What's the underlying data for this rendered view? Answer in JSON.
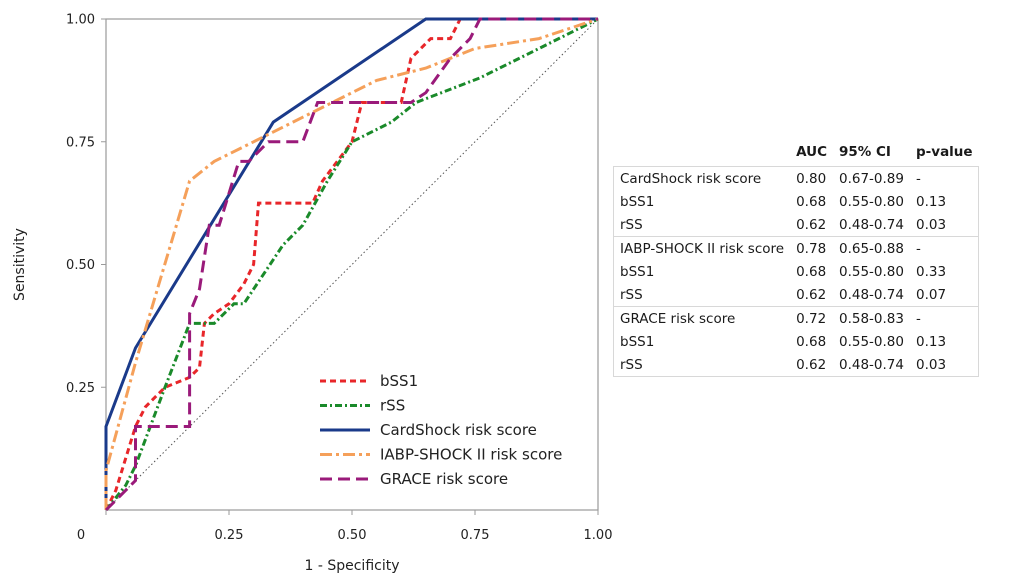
{
  "chart_data": {
    "type": "line",
    "xlabel": "1 - Specificity",
    "ylabel": "Sensitivity",
    "xlim": [
      0,
      1
    ],
    "ylim": [
      0,
      1
    ],
    "x_ticks": [
      "0",
      "0.25",
      "0.50",
      "0.75",
      "1.00"
    ],
    "y_ticks": [
      "0.25",
      "0.50",
      "0.75",
      "1.00"
    ],
    "legend_position": "bottom-right",
    "reference_line": {
      "from": [
        0,
        0
      ],
      "to": [
        1,
        1
      ],
      "style": "dotted",
      "color": "#555555"
    },
    "series": [
      {
        "name": "bSS1",
        "color": "#e8262a",
        "dash": "dash",
        "x": [
          0,
          0.02,
          0.06,
          0.08,
          0.12,
          0.17,
          0.19,
          0.2,
          0.22,
          0.25,
          0.28,
          0.3,
          0.31,
          0.42,
          0.44,
          0.5,
          0.52,
          0.6,
          0.62,
          0.66,
          0.7,
          0.72,
          0.74,
          0.8,
          1.0
        ],
        "y": [
          0,
          0.04,
          0.17,
          0.21,
          0.25,
          0.27,
          0.29,
          0.38,
          0.4,
          0.42,
          0.46,
          0.5,
          0.625,
          0.625,
          0.67,
          0.75,
          0.83,
          0.83,
          0.92,
          0.96,
          0.96,
          1.0,
          1.0,
          1.0,
          1.0
        ]
      },
      {
        "name": "rSS",
        "color": "#1a8a2a",
        "dash": "dashdot",
        "x": [
          0,
          0.04,
          0.06,
          0.09,
          0.12,
          0.17,
          0.22,
          0.26,
          0.28,
          0.36,
          0.4,
          0.45,
          0.5,
          0.58,
          0.63,
          0.76,
          0.88,
          1.0
        ],
        "y": [
          0,
          0.05,
          0.09,
          0.17,
          0.25,
          0.38,
          0.38,
          0.42,
          0.42,
          0.54,
          0.58,
          0.67,
          0.75,
          0.79,
          0.83,
          0.88,
          0.94,
          1.0
        ],
        "raw_steps": true
      },
      {
        "name": "CardShock risk score",
        "color": "#1a3a8a",
        "dash": "solid",
        "x": [
          0,
          0.0,
          0.06,
          0.34,
          0.65,
          1.0
        ],
        "y": [
          0,
          0.17,
          0.33,
          0.79,
          1.0,
          1.0
        ]
      },
      {
        "name": "IABP-SHOCK II risk score",
        "color": "#f5a05a",
        "dash": "longdashdot",
        "x": [
          0,
          0.0,
          0.06,
          0.17,
          0.22,
          0.3,
          0.4,
          0.55,
          0.65,
          0.75,
          0.88,
          1.0
        ],
        "y": [
          0,
          0.08,
          0.3,
          0.67,
          0.71,
          0.75,
          0.8,
          0.875,
          0.9,
          0.94,
          0.96,
          1.0
        ]
      },
      {
        "name": "GRACE risk score",
        "color": "#9a1a7a",
        "dash": "longdash",
        "x": [
          0,
          0.06,
          0.06,
          0.17,
          0.17,
          0.19,
          0.21,
          0.23,
          0.27,
          0.29,
          0.33,
          0.4,
          0.43,
          0.55,
          0.62,
          0.65,
          0.7,
          0.74,
          0.76,
          1.0
        ],
        "y": [
          0,
          0.06,
          0.17,
          0.17,
          0.4,
          0.45,
          0.58,
          0.58,
          0.71,
          0.71,
          0.75,
          0.75,
          0.83,
          0.83,
          0.83,
          0.85,
          0.92,
          0.96,
          1.0,
          1.0
        ]
      }
    ]
  },
  "stats_table": {
    "headers": [
      "",
      "AUC",
      "95% CI",
      "p-value"
    ],
    "rows": [
      [
        "CardShock risk score",
        "0.80",
        "0.67-0.89",
        "-"
      ],
      [
        "bSS1",
        "0.68",
        "0.55-0.80",
        "0.13"
      ],
      [
        "rSS",
        "0.62",
        "0.48-0.74",
        "0.03"
      ],
      [
        "IABP-SHOCK II risk score",
        "0.78",
        "0.65-0.88",
        "-"
      ],
      [
        "bSS1",
        "0.68",
        "0.55-0.80",
        "0.33"
      ],
      [
        "rSS",
        "0.62",
        "0.48-0.74",
        "0.07"
      ],
      [
        "GRACE risk score",
        "0.72",
        "0.58-0.83",
        "-"
      ],
      [
        "bSS1",
        "0.68",
        "0.55-0.80",
        "0.13"
      ],
      [
        "rSS",
        "0.62",
        "0.48-0.74",
        "0.03"
      ]
    ],
    "group_starts": [
      0,
      3,
      6
    ]
  }
}
